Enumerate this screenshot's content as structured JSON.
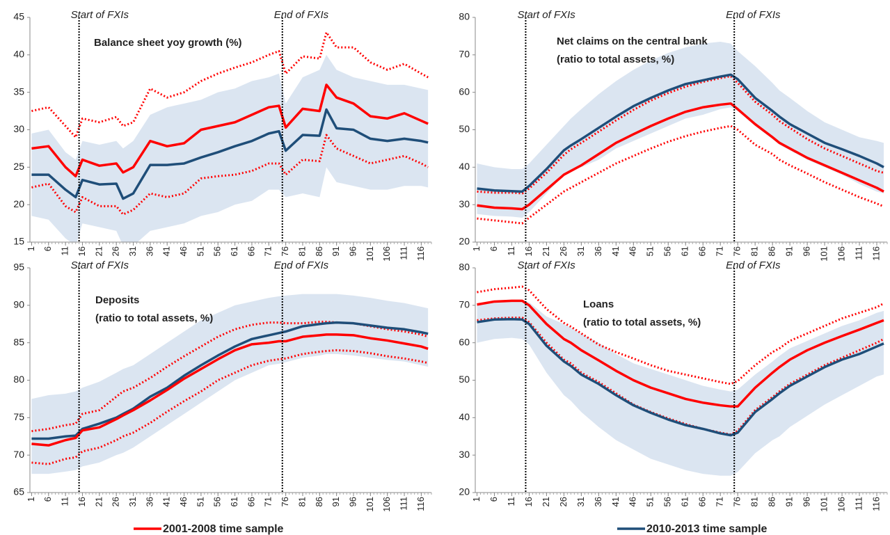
{
  "chart_data": [
    {
      "type": "line",
      "title": [
        "Balance sheet yoy growth (%)"
      ],
      "annotations": [
        {
          "text": "Start of FXIs",
          "x": 15
        },
        {
          "text": "End of FXIs",
          "x": 75
        }
      ],
      "x": [
        1,
        6,
        11,
        14,
        16,
        21,
        26,
        28,
        31,
        36,
        41,
        46,
        51,
        56,
        61,
        66,
        71,
        74,
        76,
        81,
        86,
        88,
        91,
        96,
        101,
        106,
        111,
        116,
        118
      ],
      "xlim": [
        0.5,
        119
      ],
      "xticks": [
        1,
        6,
        11,
        16,
        21,
        26,
        31,
        36,
        41,
        46,
        51,
        56,
        61,
        66,
        71,
        76,
        81,
        86,
        91,
        96,
        101,
        106,
        111,
        116
      ],
      "ylim": [
        15,
        45
      ],
      "yticks": [
        15,
        20,
        25,
        30,
        35,
        40,
        45
      ],
      "series": [
        {
          "color": "#ff0000",
          "values": [
            27.5,
            27.8,
            25,
            23.8,
            26,
            25.2,
            25.5,
            24.3,
            25,
            28.5,
            27.8,
            28.2,
            30,
            30.5,
            31,
            32,
            33,
            33.2,
            30.3,
            32.8,
            32.5,
            36,
            34.3,
            33.5,
            31.8,
            31.5,
            32.2,
            31.2,
            30.8
          ],
          "upper": [
            32.5,
            33,
            30.5,
            29,
            31.5,
            31,
            31.7,
            30.5,
            31,
            35.5,
            34.3,
            35,
            36.5,
            37.5,
            38.3,
            39,
            40,
            40.5,
            37.5,
            39.8,
            39.5,
            43,
            41,
            41,
            39,
            38,
            38.8,
            37.5,
            37
          ],
          "lower": [
            22.3,
            22.8,
            19.8,
            19,
            21,
            19.8,
            19.8,
            18.7,
            19.3,
            21.5,
            21,
            21.5,
            23.5,
            23.8,
            24,
            24.5,
            25.5,
            25.5,
            24,
            26,
            25.8,
            29.3,
            27.5,
            26.5,
            25.5,
            26,
            26.5,
            25.5,
            25
          ]
        },
        {
          "color": "#1f4e79",
          "band_color": "#dbe5f1",
          "values": [
            24,
            24,
            22,
            21,
            23.3,
            22.7,
            22.8,
            20.8,
            21.5,
            25.3,
            25.3,
            25.5,
            26.3,
            27,
            27.8,
            28.5,
            29.5,
            29.8,
            27.2,
            29.3,
            29.2,
            32.7,
            30.2,
            30,
            28.8,
            28.5,
            28.8,
            28.5,
            28.3
          ],
          "band_upper": [
            29.5,
            30,
            27,
            26,
            28.5,
            28,
            28.5,
            27.5,
            28.5,
            32,
            33,
            33.5,
            34,
            35,
            35.5,
            36.5,
            37,
            37.5,
            33.5,
            37,
            38,
            40,
            38,
            37,
            36.5,
            36,
            36,
            35.5,
            35.3
          ],
          "band_lower": [
            18.5,
            18,
            15.5,
            14.5,
            17.5,
            17,
            16.5,
            14.5,
            14.5,
            16.5,
            17,
            17.5,
            18.5,
            19,
            20,
            20.5,
            22,
            22,
            21,
            21.5,
            21,
            25,
            23,
            22.5,
            22,
            22,
            22.5,
            22.5,
            22.3
          ]
        }
      ]
    },
    {
      "type": "line",
      "title": [
        "Net claims on the central bank",
        "(ratio to total assets, %)"
      ],
      "annotations": [
        {
          "text": "Start of FXIs",
          "x": 15
        },
        {
          "text": "End of FXIs",
          "x": 75
        }
      ],
      "x": [
        1,
        6,
        11,
        14,
        16,
        21,
        26,
        28,
        31,
        36,
        41,
        46,
        51,
        56,
        61,
        66,
        71,
        74,
        76,
        81,
        86,
        88,
        91,
        96,
        101,
        106,
        111,
        116,
        118
      ],
      "xlim": [
        0.5,
        119
      ],
      "xticks": [
        1,
        6,
        11,
        16,
        21,
        26,
        31,
        36,
        41,
        46,
        51,
        56,
        61,
        66,
        71,
        76,
        81,
        86,
        91,
        96,
        101,
        106,
        111,
        116
      ],
      "ylim": [
        20,
        80
      ],
      "yticks": [
        20,
        30,
        40,
        50,
        60,
        70,
        80
      ],
      "series": [
        {
          "color": "#ff0000",
          "values": [
            29.8,
            29.2,
            29,
            28.8,
            30,
            34,
            38,
            39,
            40.5,
            43.5,
            46.5,
            48.8,
            51,
            53,
            54.8,
            56,
            56.7,
            57,
            55.5,
            51.5,
            48,
            46.5,
            45,
            42.5,
            40.5,
            38.5,
            36.5,
            34.5,
            33.5
          ],
          "upper": [
            33.5,
            33.2,
            33.2,
            33,
            34.3,
            38.5,
            43.3,
            44.8,
            46.5,
            49.5,
            52.5,
            55.3,
            57.8,
            59.8,
            61.5,
            62.8,
            63.8,
            64.3,
            62.5,
            57.5,
            54,
            52.3,
            50.5,
            47.5,
            45,
            43,
            41,
            39,
            38.5
          ],
          "lower": [
            26.3,
            25.8,
            25.3,
            25,
            26.5,
            30,
            33.5,
            34.5,
            36,
            38.5,
            41,
            43,
            45,
            46.8,
            48.3,
            49.5,
            50.5,
            51,
            50,
            46,
            43.5,
            42,
            40.5,
            38.3,
            36,
            34,
            32,
            30.3,
            29.5
          ]
        },
        {
          "color": "#1f4e79",
          "band_color": "#dbe5f1",
          "values": [
            34.3,
            33.8,
            33.6,
            33.5,
            35,
            39.5,
            44.5,
            45.8,
            47.5,
            50.5,
            53.5,
            56.3,
            58.5,
            60.5,
            62.2,
            63.2,
            64.2,
            64.7,
            63.5,
            58.5,
            55,
            53.5,
            51.5,
            49,
            46.5,
            44.8,
            43,
            41,
            40
          ],
          "band_upper": [
            41,
            40,
            39.5,
            39.5,
            41,
            46,
            51,
            53,
            55.5,
            59.5,
            63,
            66,
            68.5,
            70.5,
            72,
            73,
            73.5,
            73,
            71,
            67,
            62.5,
            60.5,
            58.5,
            55,
            52,
            50,
            48,
            47,
            46.5
          ],
          "band_lower": [
            27.5,
            27,
            26.8,
            26.5,
            28,
            33,
            38,
            39,
            40,
            42,
            45,
            47,
            49,
            51,
            53,
            54,
            55.5,
            56,
            55,
            51,
            47.5,
            46,
            44.5,
            42,
            40,
            38,
            35.5,
            33.5,
            33
          ]
        }
      ]
    },
    {
      "type": "line",
      "title": [
        "Deposits",
        "(ratio to total assets, %)"
      ],
      "annotations": [
        {
          "text": "Start of FXIs",
          "x": 15
        },
        {
          "text": "End of FXIs",
          "x": 75
        }
      ],
      "x": [
        1,
        6,
        11,
        14,
        16,
        21,
        26,
        28,
        31,
        36,
        41,
        46,
        51,
        56,
        61,
        66,
        71,
        74,
        76,
        81,
        86,
        88,
        91,
        96,
        101,
        106,
        111,
        116,
        118
      ],
      "xlim": [
        0.5,
        119
      ],
      "xticks": [
        1,
        6,
        11,
        16,
        21,
        26,
        31,
        36,
        41,
        46,
        51,
        56,
        61,
        66,
        71,
        76,
        81,
        86,
        91,
        96,
        101,
        106,
        111,
        116
      ],
      "ylim": [
        65,
        95
      ],
      "yticks": [
        65,
        70,
        75,
        80,
        85,
        90,
        95
      ],
      "series": [
        {
          "color": "#ff0000",
          "values": [
            71.5,
            71.3,
            72,
            72.3,
            73.3,
            73.7,
            74.8,
            75.3,
            76,
            77.3,
            78.7,
            80.2,
            81.5,
            82.8,
            84,
            84.8,
            85,
            85.2,
            85.2,
            85.8,
            86,
            86.1,
            86.1,
            86,
            85.6,
            85.3,
            84.9,
            84.5,
            84.2
          ],
          "upper": [
            73.2,
            73.5,
            74,
            74.2,
            75.5,
            76,
            77.8,
            78.5,
            79,
            80.3,
            81.8,
            83.2,
            84.5,
            85.8,
            86.8,
            87.4,
            87.7,
            87.7,
            87.6,
            87.6,
            87.8,
            87.8,
            87.7,
            87.6,
            87.2,
            86.8,
            86.5,
            86.1,
            85.8
          ],
          "lower": [
            69,
            68.8,
            69.5,
            69.7,
            70.5,
            71,
            72,
            72.5,
            73,
            74.3,
            75.8,
            77.2,
            78.5,
            80,
            81,
            82,
            82.6,
            82.8,
            82.9,
            83.5,
            83.8,
            83.9,
            84,
            83.9,
            83.6,
            83.2,
            82.9,
            82.5,
            82.3
          ]
        },
        {
          "color": "#1f4e79",
          "band_color": "#dbe5f1",
          "values": [
            72.2,
            72.2,
            72.5,
            72.6,
            73.5,
            74.2,
            75,
            75.5,
            76.2,
            77.8,
            79,
            80.6,
            82,
            83.3,
            84.5,
            85.5,
            86,
            86.3,
            86.5,
            87.2,
            87.5,
            87.6,
            87.7,
            87.6,
            87.3,
            87,
            86.8,
            86.4,
            86.2
          ],
          "band_upper": [
            77.5,
            78,
            78.2,
            78.5,
            79,
            79.8,
            81,
            81.5,
            82,
            83.5,
            85,
            86.5,
            88,
            89,
            90,
            90.5,
            91,
            91.2,
            91.3,
            91.5,
            91.5,
            91.5,
            91.5,
            91.3,
            91,
            90.6,
            90.3,
            89.8,
            89.6
          ],
          "band_lower": [
            67.5,
            67.5,
            67.8,
            68,
            68.5,
            69,
            70,
            70.3,
            71,
            72.5,
            74,
            75.5,
            77,
            78.5,
            80,
            81,
            82,
            82.2,
            82.4,
            83,
            83.3,
            83.5,
            83.5,
            83.3,
            83,
            82.7,
            82.5,
            82,
            81.8
          ]
        }
      ]
    },
    {
      "type": "line",
      "title": [
        "Loans",
        "(ratio to total assets, %)"
      ],
      "annotations": [
        {
          "text": "Start of FXIs",
          "x": 15
        },
        {
          "text": "End of FXIs",
          "x": 75
        }
      ],
      "x": [
        1,
        6,
        11,
        14,
        16,
        21,
        26,
        28,
        31,
        36,
        41,
        46,
        51,
        56,
        61,
        66,
        71,
        74,
        76,
        81,
        86,
        88,
        91,
        96,
        101,
        106,
        111,
        116,
        118
      ],
      "xlim": [
        0.5,
        119
      ],
      "xticks": [
        1,
        6,
        11,
        16,
        21,
        26,
        31,
        36,
        41,
        46,
        51,
        56,
        61,
        66,
        71,
        76,
        81,
        86,
        91,
        96,
        101,
        106,
        111,
        116
      ],
      "ylim": [
        20,
        80
      ],
      "yticks": [
        20,
        30,
        40,
        50,
        60,
        70,
        80
      ],
      "series": [
        {
          "color": "#ff0000",
          "values": [
            70.2,
            71,
            71.2,
            71.2,
            70,
            65,
            61,
            60,
            58,
            55.3,
            52.5,
            50,
            48,
            46.5,
            45,
            44,
            43.3,
            43,
            43,
            48,
            52,
            53.5,
            55.5,
            58,
            60,
            61.8,
            63.5,
            65.3,
            66
          ],
          "upper": [
            73.5,
            74.3,
            74.7,
            75,
            74,
            69,
            65.3,
            64.3,
            62.5,
            59.5,
            57.5,
            55.8,
            54,
            52.5,
            51.5,
            50.5,
            49.5,
            49,
            49.8,
            54,
            57.5,
            58.5,
            60.5,
            62.5,
            64.5,
            66.5,
            68,
            69.5,
            70.5
          ],
          "lower": [
            66,
            66.5,
            66.7,
            66.7,
            65.5,
            60,
            55.5,
            54.5,
            52,
            49.5,
            46.5,
            43.5,
            41.5,
            39.8,
            38.3,
            37,
            36,
            35.5,
            36.5,
            42,
            45.5,
            47,
            49,
            51.5,
            54,
            56,
            58,
            60,
            61
          ]
        },
        {
          "color": "#1f4e79",
          "band_color": "#dbe5f1",
          "values": [
            65.5,
            66.2,
            66.3,
            66.2,
            65,
            59.2,
            55,
            53.8,
            51.5,
            49,
            46,
            43.3,
            41.3,
            39.5,
            38,
            37,
            35.8,
            35.3,
            36,
            41.5,
            45,
            46.5,
            48.5,
            51,
            53.5,
            55.5,
            57,
            59,
            59.8
          ],
          "band_upper": [
            70.5,
            71,
            71.3,
            71.3,
            70.8,
            67,
            65,
            64,
            62.5,
            60,
            57,
            54.5,
            53,
            51.5,
            50,
            48.5,
            47.5,
            47,
            47.5,
            51.5,
            55,
            56.5,
            58.5,
            60.5,
            62.5,
            64.5,
            66,
            68,
            68.5
          ],
          "band_lower": [
            60,
            61,
            61.3,
            61,
            59.5,
            52,
            46,
            44.5,
            41.5,
            37.5,
            34,
            31.5,
            29,
            27.5,
            26,
            25,
            24.5,
            24.5,
            25.5,
            30.5,
            34,
            35,
            37.5,
            40.5,
            43.5,
            46,
            48.5,
            51,
            51.5
          ]
        }
      ]
    }
  ],
  "legend": [
    {
      "label": "2001-2008 time sample",
      "color": "#ff0000"
    },
    {
      "label": "2010-2013 time sample",
      "color": "#1f4e79"
    }
  ]
}
